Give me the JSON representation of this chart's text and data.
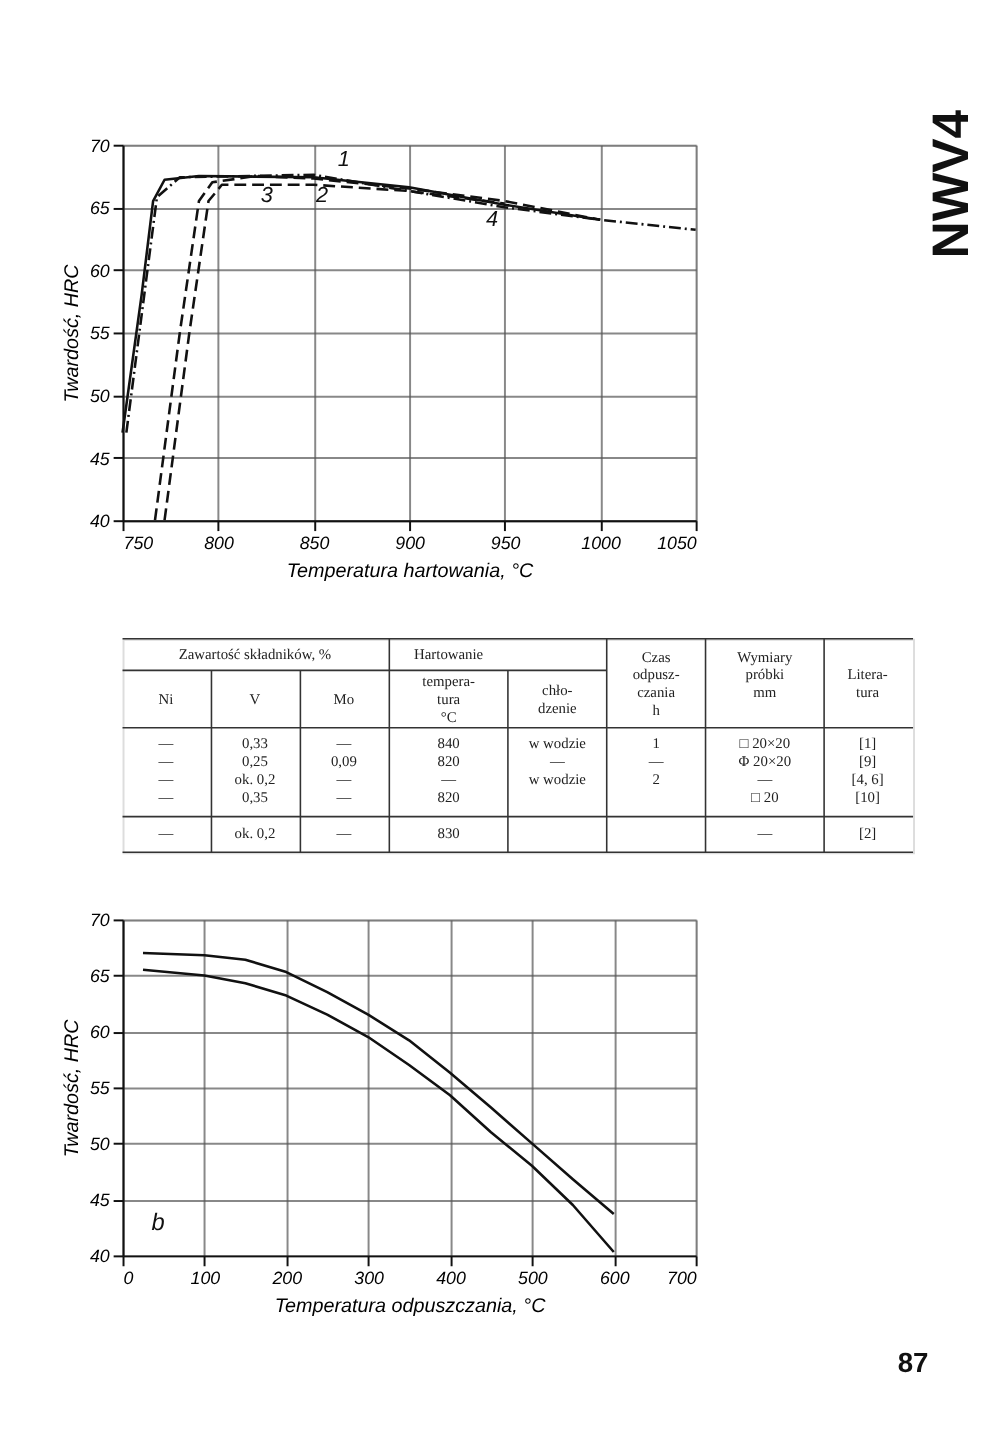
{
  "chart_data": [
    {
      "type": "line",
      "xlabel": "Temperatura hartowania, °C",
      "ylabel": "Twardość, HRC",
      "xlim": [
        750,
        1050
      ],
      "ylim": [
        40,
        70
      ],
      "xticks": [
        750,
        800,
        850,
        900,
        950,
        1000,
        1050
      ],
      "yticks": [
        40,
        45,
        50,
        55,
        60,
        65,
        70
      ],
      "grid": true,
      "marker": "none",
      "series": [
        {
          "color": "#111111",
          "line_style": "solid",
          "x": [
            750,
            760,
            766,
            772,
            790,
            850,
            900,
            950,
            1000
          ],
          "values": [
            47,
            58,
            65.5,
            67.2,
            67.5,
            67.4,
            66.6,
            65.2,
            64.0
          ]
        },
        {
          "color": "#111111",
          "line_style": "dashed",
          "x": [
            767,
            780,
            790,
            797,
            820,
            850,
            900,
            950,
            1000
          ],
          "values": [
            40,
            55,
            65.5,
            67,
            67.5,
            67.3,
            66.5,
            65.5,
            64.0
          ]
        },
        {
          "color": "#111111",
          "line_style": "dashed",
          "x": [
            772,
            785,
            795,
            802,
            850,
            900,
            950
          ],
          "values": [
            40,
            55,
            65.5,
            66.8,
            66.8,
            66.3,
            65.3
          ]
        },
        {
          "color": "#111111",
          "line_style": "dotted",
          "x": [
            752,
            768,
            780,
            850,
            900,
            950,
            1000,
            1050
          ],
          "values": [
            47,
            65.8,
            67.4,
            67.6,
            66.3,
            65.0,
            64.0,
            63.2
          ]
        }
      ],
      "annotations": [
        "1",
        "2",
        "3",
        "4",
        "NWV4"
      ]
    },
    {
      "type": "other",
      "annotations": [
        "Zawartość składników, %",
        "Hartowanie",
        "Czas\nodpusz-\nczania\nh",
        "Wymiary\npróbki\n\nmm",
        "Litera-\ntura",
        "Ni",
        "V",
        "Mo",
        "tempera-\ntura\n°C",
        "chło-\ndzenie",
        "—\n—\n—\n—",
        "0,33\n0,25\nok. 0,2\n0,35",
        "—\n0,09\n—\n—",
        "840\n820\n—\n820",
        "w wodzie\n—\n\nw wodzie",
        "1\n—\n\n2",
        "□ 20×20\nΦ 20×20\n—\n□ 20",
        "[1]\n[9]\n[4, 6]\n[10]",
        "—",
        "ok. 0,2",
        "—",
        "830",
        "—",
        "[2]"
      ]
    },
    {
      "type": "area",
      "xlabel": "Temperatura odpuszczania, °C",
      "ylabel": "Twardość, HRC",
      "xlim": [
        0,
        700
      ],
      "ylim": [
        40,
        70
      ],
      "xticks": [
        0,
        100,
        200,
        300,
        400,
        500,
        600,
        700
      ],
      "yticks": [
        40,
        45,
        50,
        55,
        60,
        65,
        70
      ],
      "grid": true,
      "x": [
        25,
        100,
        150,
        200,
        250,
        300,
        350,
        400,
        450,
        500,
        550,
        600
      ],
      "series": [
        {
          "type": "line",
          "color": "#111111",
          "values": [
            67,
            66.8,
            66.4,
            65.3,
            63.5,
            61.5,
            59.2,
            56.3,
            53.2,
            50,
            46.8,
            43.7
          ]
        },
        {
          "type": "line",
          "color": "#111111",
          "values": [
            65.5,
            65,
            64.3,
            63.2,
            61.5,
            59.5,
            57,
            54.3,
            51,
            48,
            44.5,
            40.3
          ]
        }
      ],
      "annotations": [
        "b",
        "87"
      ]
    }
  ]
}
